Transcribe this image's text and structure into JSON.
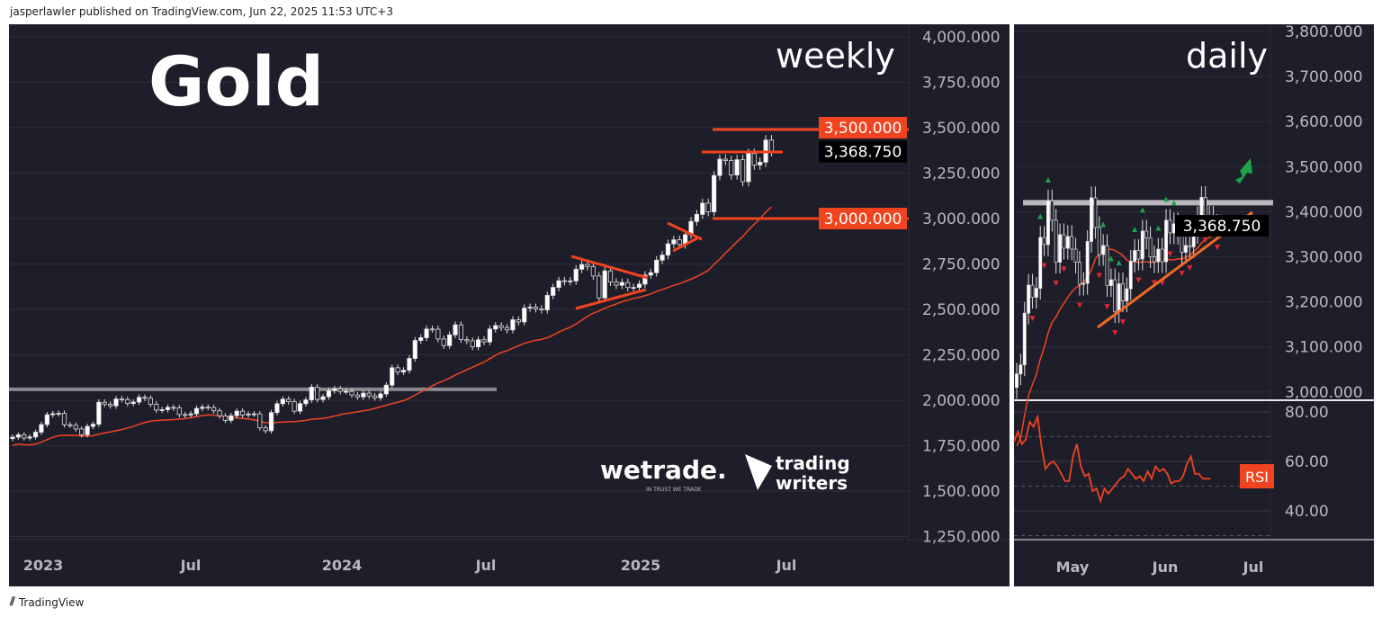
{
  "header": "jasperlawler published on TradingView.com, Jun 22, 2025 11:53 UTC+3",
  "footer": "TradingView",
  "colors": {
    "bg": "#1e1e2b",
    "accent": "#f0431f",
    "up": "#ffffff",
    "ma": "#f0431f",
    "green": "#1fa34a",
    "red": "#e5262c"
  },
  "logos": {
    "wetrade": "wetrade.",
    "wetrade_tag": "IN TRUST WE TRADE",
    "tw1": "trading",
    "tw2": "writers"
  },
  "chart_data": [
    {
      "type": "candlestick",
      "title": "Gold",
      "timeframe": "weekly",
      "yticks": [
        "4,000.000",
        "3,750.000",
        "3,500.000",
        "3,250.000",
        "3,000.000",
        "2,750.000",
        "2,500.000",
        "2,250.000",
        "2,000.000",
        "1,750.000",
        "1,500.000",
        "1,250.000"
      ],
      "ytick_values": [
        4000,
        3750,
        3500,
        3250,
        3000,
        2750,
        2500,
        2250,
        2000,
        1750,
        1500,
        1250
      ],
      "xticks": [
        "2023",
        "Jul",
        "2024",
        "Jul",
        "2025",
        "Jul"
      ],
      "price_labels": [
        {
          "text": "3,500.000",
          "value": 3500,
          "style": "accent"
        },
        {
          "text": "3,368.750",
          "value": 3368.75,
          "style": "dark"
        },
        {
          "text": "3,000.000",
          "value": 3000,
          "style": "accent"
        }
      ],
      "closes": [
        1797,
        1810,
        1792,
        1798,
        1824,
        1866,
        1920,
        1926,
        1928,
        1865,
        1862,
        1842,
        1810,
        1856,
        1868,
        1989,
        1978,
        1969,
        2007,
        2004,
        1982,
        1990,
        2016,
        2011,
        1978,
        1946,
        1948,
        1961,
        1958,
        1921,
        1919,
        1925,
        1955,
        1962,
        1960,
        1942,
        1914,
        1889,
        1915,
        1940,
        1919,
        1924,
        1925,
        1848,
        1832,
        1932,
        1981,
        2006,
        1992,
        1940,
        1981,
        2002,
        2072,
        2004,
        2019,
        2053,
        2063,
        2049,
        2049,
        2029,
        2018,
        2039,
        2024,
        2013,
        2035,
        2083,
        2179,
        2155,
        2165,
        2230,
        2329,
        2344,
        2392,
        2391,
        2337,
        2301,
        2360,
        2415,
        2334,
        2327,
        2294,
        2333,
        2321,
        2392,
        2411,
        2400,
        2387,
        2443,
        2431,
        2507,
        2512,
        2503,
        2497,
        2577,
        2621,
        2658,
        2653,
        2657,
        2721,
        2747,
        2736,
        2684,
        2563,
        2712,
        2650,
        2633,
        2648,
        2620,
        2621,
        2639,
        2689,
        2702,
        2771,
        2799,
        2861,
        2883,
        2857,
        2911,
        2984,
        3023,
        3085,
        3037,
        3237,
        3327,
        3319,
        3240,
        3324,
        3203,
        3358,
        3295,
        3310,
        3432,
        3368.75
      ],
      "ma_period": 20,
      "resistance": 2060
    },
    {
      "type": "candlestick",
      "timeframe": "daily",
      "yticks": [
        "3,800.000",
        "3,700.000",
        "3,600.000",
        "3,500.000",
        "3,400.000",
        "3,300.000",
        "3,200.000",
        "3,100.000",
        "3,000.000"
      ],
      "ytick_values": [
        3800,
        3700,
        3600,
        3500,
        3400,
        3300,
        3200,
        3100,
        3000
      ],
      "xticks": [
        "May",
        "Jun",
        "Jul"
      ],
      "price_label": "3,368.750",
      "closes": [
        3040,
        3060,
        3175,
        3237,
        3210,
        3230,
        3343,
        3327,
        3424,
        3381,
        3288,
        3349,
        3319,
        3345,
        3317,
        3288,
        3239,
        3241,
        3334,
        3431,
        3365,
        3305,
        3325,
        3236,
        3249,
        3178,
        3240,
        3202,
        3229,
        3290,
        3314,
        3295,
        3357,
        3342,
        3300,
        3289,
        3317,
        3289,
        3381,
        3353,
        3373,
        3352,
        3310,
        3325,
        3322,
        3354,
        3387,
        3432,
        3384,
        3388,
        3370,
        3368,
        3368.75
      ],
      "ma_period": 20,
      "resistance": 3420,
      "rsi": {
        "label": "RSI",
        "yticks": [
          "80.00",
          "60.00",
          "40.00"
        ],
        "ytick_values": [
          80,
          60,
          40
        ],
        "values": [
          68,
          72,
          67,
          69,
          76,
          74,
          78,
          66,
          57,
          59,
          60,
          58,
          55,
          52,
          52,
          62,
          67,
          58,
          54,
          55,
          48,
          49,
          44,
          49,
          47,
          49,
          51,
          53,
          54,
          57,
          55,
          53,
          54,
          52,
          56,
          53,
          58,
          56,
          57,
          55,
          51,
          52,
          52,
          54,
          59,
          62,
          55,
          55,
          53,
          53,
          53
        ]
      }
    }
  ]
}
